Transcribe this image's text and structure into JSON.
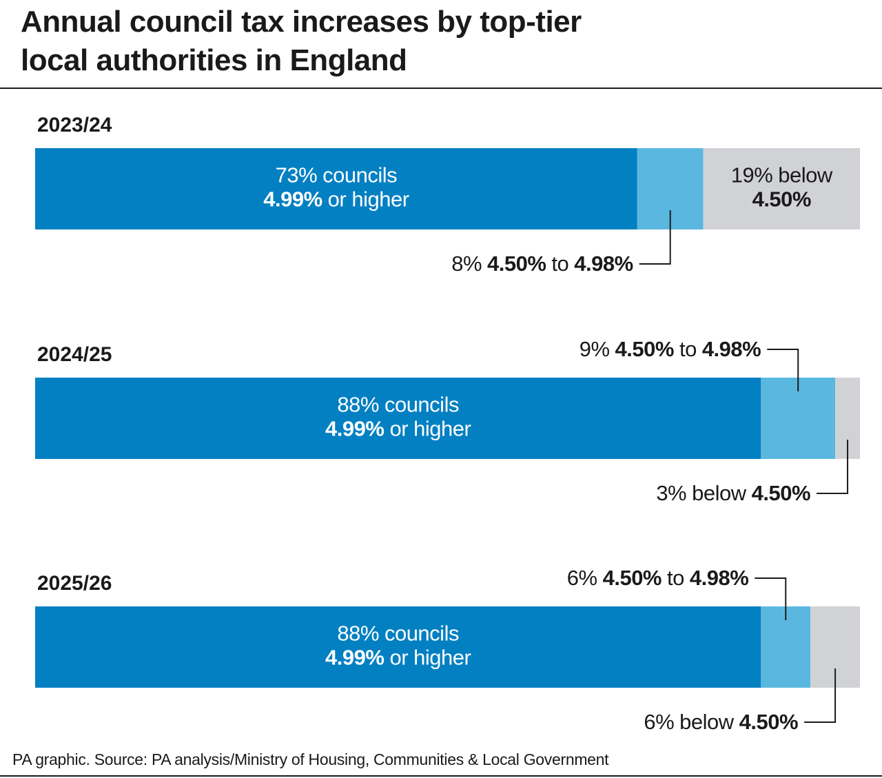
{
  "title": "Annual council tax increases by top-tier local authorities in England",
  "source": "PA graphic. Source: PA analysis/Ministry of Housing, Communities & Local Government",
  "chart_data": [
    {
      "type": "bar",
      "orientation": "horizontal",
      "title": "2023/24",
      "xlim": [
        0,
        100
      ],
      "series": [
        {
          "color": "#0380c2",
          "text_color": "#ffffff",
          "values": [
            73
          ],
          "value_labels": [
            "73%"
          ],
          "label": [
            [
              {
                "text": "councils"
              }
            ],
            [
              {
                "text": "4.99%",
                "bold": true
              },
              {
                "text": "or higher"
              }
            ]
          ]
        },
        {
          "color": "#5ab8e0",
          "values": [
            8
          ],
          "value_labels": [
            "8%"
          ],
          "callout": "below",
          "label": [
            [
              {
                "text": "4.50%",
                "bold": true
              },
              {
                "text": "to"
              },
              {
                "text": "4.98%",
                "bold": true
              }
            ]
          ]
        },
        {
          "color": "#d1d2d6",
          "text_color": "#1a1a1a",
          "values": [
            19
          ],
          "value_labels": [
            "19%"
          ],
          "label": [
            [
              {
                "text": "below"
              }
            ],
            [
              {
                "text": "4.50%",
                "bold": true
              }
            ]
          ]
        }
      ]
    },
    {
      "type": "bar",
      "orientation": "horizontal",
      "title": "2024/25",
      "xlim": [
        0,
        100
      ],
      "series": [
        {
          "color": "#0380c2",
          "text_color": "#ffffff",
          "values": [
            88
          ],
          "value_labels": [
            "88%"
          ],
          "label": [
            [
              {
                "text": "councils"
              }
            ],
            [
              {
                "text": "4.99%",
                "bold": true
              },
              {
                "text": "or higher"
              }
            ]
          ]
        },
        {
          "color": "#5ab8e0",
          "values": [
            9
          ],
          "value_labels": [
            "9%"
          ],
          "callout": "above",
          "label": [
            [
              {
                "text": "4.50%",
                "bold": true
              },
              {
                "text": "to"
              },
              {
                "text": "4.98%",
                "bold": true
              }
            ]
          ]
        },
        {
          "color": "#d1d2d6",
          "values": [
            3
          ],
          "value_labels": [
            "3%"
          ],
          "callout": "below",
          "label": [
            [
              {
                "text": "below"
              },
              {
                "text": "4.50%",
                "bold": true
              }
            ]
          ]
        }
      ]
    },
    {
      "type": "bar",
      "orientation": "horizontal",
      "title": "2025/26",
      "xlim": [
        0,
        100
      ],
      "series": [
        {
          "color": "#0380c2",
          "text_color": "#ffffff",
          "values": [
            88
          ],
          "value_labels": [
            "88%"
          ],
          "label": [
            [
              {
                "text": "councils"
              }
            ],
            [
              {
                "text": "4.99%",
                "bold": true
              },
              {
                "text": "or higher"
              }
            ]
          ]
        },
        {
          "color": "#5ab8e0",
          "values": [
            6
          ],
          "value_labels": [
            "6%"
          ],
          "callout": "above",
          "label": [
            [
              {
                "text": "4.50%",
                "bold": true
              },
              {
                "text": "to"
              },
              {
                "text": "4.98%",
                "bold": true
              }
            ]
          ]
        },
        {
          "color": "#d1d2d6",
          "values": [
            6
          ],
          "value_labels": [
            "6%"
          ],
          "callout": "below",
          "label": [
            [
              {
                "text": "below"
              },
              {
                "text": "4.50%",
                "bold": true
              }
            ]
          ]
        }
      ]
    }
  ]
}
